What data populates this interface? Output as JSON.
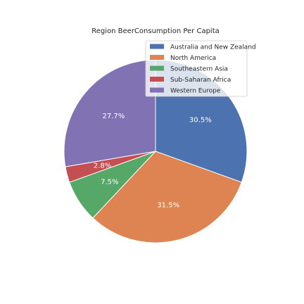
{
  "chart_data": {
    "type": "pie",
    "title": "Region BeerConsumption Per Capita",
    "legend_position": "top-right",
    "start_angle_deg": 90,
    "direction": "clockwise",
    "slices": [
      {
        "name": "Australia and New Zealand",
        "value": 30.5,
        "label": "30.5%",
        "color": "#4c72b0"
      },
      {
        "name": "North America",
        "value": 31.5,
        "label": "31.5%",
        "color": "#dd8452"
      },
      {
        "name": "Southeastern Asia",
        "value": 7.5,
        "label": "7.5%",
        "color": "#55a868"
      },
      {
        "name": "Sub-Saharan Africa",
        "value": 2.8,
        "label": "2.8%",
        "color": "#c44e52"
      },
      {
        "name": "Western Europe",
        "value": 27.7,
        "label": "27.7%",
        "color": "#8172b3"
      }
    ]
  }
}
